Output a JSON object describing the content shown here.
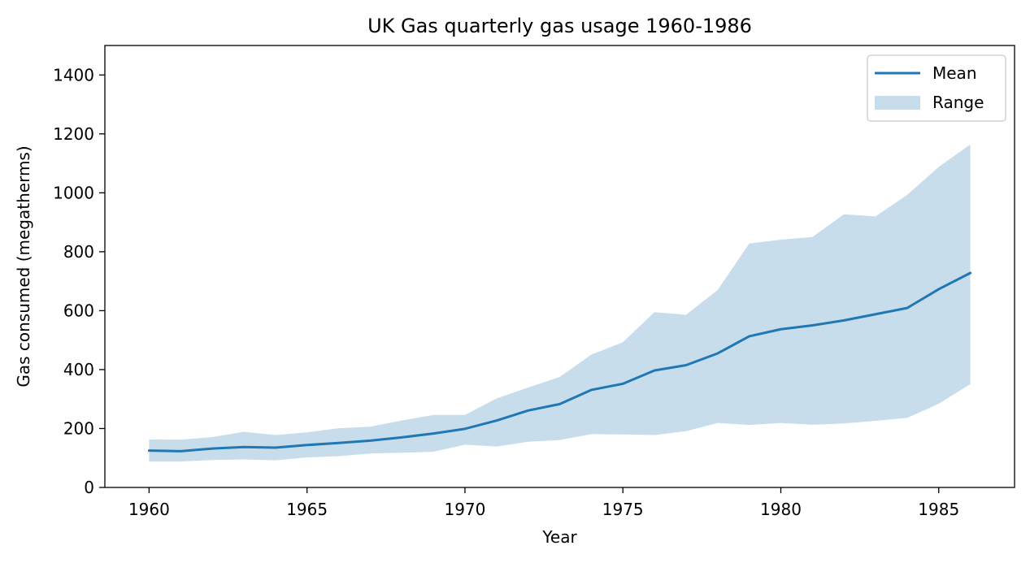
{
  "chart_data": {
    "type": "line",
    "title": "UK Gas quarterly gas usage 1960-1986",
    "xlabel": "Year",
    "ylabel": "Gas consumed (megatherms)",
    "xlim": [
      1958.6,
      1987.4
    ],
    "ylim": [
      0,
      1500
    ],
    "xticks": [
      1960,
      1965,
      1970,
      1975,
      1980,
      1985
    ],
    "yticks": [
      0,
      200,
      400,
      600,
      800,
      1000,
      1200,
      1400
    ],
    "grid": false,
    "legend_position": "top-right",
    "x": [
      1960,
      1961,
      1962,
      1963,
      1964,
      1965,
      1966,
      1967,
      1968,
      1969,
      1970,
      1971,
      1972,
      1973,
      1974,
      1975,
      1976,
      1977,
      1978,
      1979,
      1980,
      1981,
      1982,
      1983,
      1984,
      1985,
      1986
    ],
    "series": [
      {
        "name": "Mean",
        "type": "line",
        "color": "#1f77b4",
        "values": [
          125,
          123,
          132,
          137,
          135,
          144,
          151,
          159,
          170,
          183,
          199,
          227,
          261,
          283,
          331,
          352,
          397,
          415,
          455,
          513,
          537,
          550,
          567,
          588,
          609,
          673,
          728
        ]
      },
      {
        "name": "Range",
        "type": "band",
        "color": "#1f77b4",
        "opacity": 0.25,
        "min": [
          88,
          88,
          93,
          95,
          92,
          102,
          106,
          115,
          118,
          121,
          145,
          139,
          155,
          161,
          181,
          180,
          178,
          191,
          219,
          212,
          219,
          213,
          217,
          226,
          236,
          284,
          351
        ],
        "max": [
          163,
          162,
          171,
          189,
          178,
          187,
          201,
          206,
          227,
          246,
          246,
          302,
          339,
          375,
          451,
          493,
          595,
          586,
          670,
          828,
          841,
          850,
          927,
          920,
          993,
          1088,
          1164
        ]
      }
    ]
  }
}
